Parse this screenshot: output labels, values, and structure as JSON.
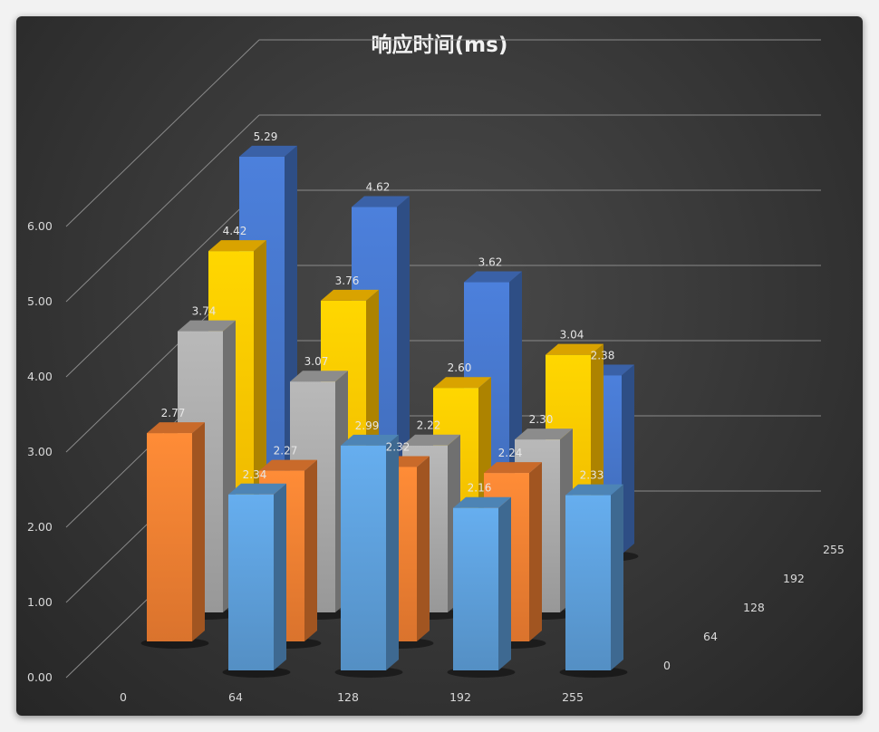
{
  "chart_data": {
    "type": "bar3d",
    "title": "响应时间(ms)",
    "categories": [
      "0",
      "64",
      "128",
      "192",
      "255"
    ],
    "depth_categories": [
      "0",
      "64",
      "128",
      "192",
      "255"
    ],
    "ylim": [
      0,
      6
    ],
    "yticks": [
      "0.00",
      "1.00",
      "2.00",
      "3.00",
      "4.00",
      "5.00",
      "6.00"
    ],
    "grid": true,
    "series": [
      {
        "depth": "0",
        "color": "#5b9bd5",
        "values": [
          null,
          2.34,
          2.99,
          2.16,
          2.33
        ],
        "labels": [
          "",
          "2.34",
          "2.99",
          "2.16",
          "2.33"
        ]
      },
      {
        "depth": "64",
        "color": "#ed7d31",
        "values": [
          2.77,
          2.27,
          2.32,
          2.24,
          null
        ],
        "labels": [
          "2.77",
          "2.27",
          "2.32",
          "2.24",
          ""
        ]
      },
      {
        "depth": "128",
        "color": "#a5a5a5",
        "values": [
          3.74,
          3.07,
          2.22,
          2.3,
          null
        ],
        "labels": [
          "3.74",
          "3.07",
          "2.22",
          "2.30",
          ""
        ]
      },
      {
        "depth": "192",
        "color": "#ffc000",
        "values": [
          4.42,
          3.76,
          2.6,
          3.04,
          null
        ],
        "labels": [
          "4.42",
          "3.76",
          "2.60",
          "3.04",
          ""
        ]
      },
      {
        "depth": "255",
        "color": "#4472c4",
        "values": [
          5.29,
          4.62,
          3.62,
          2.38,
          null
        ],
        "labels": [
          "5.29",
          "4.62",
          "3.62",
          "2.38",
          ""
        ]
      }
    ]
  }
}
